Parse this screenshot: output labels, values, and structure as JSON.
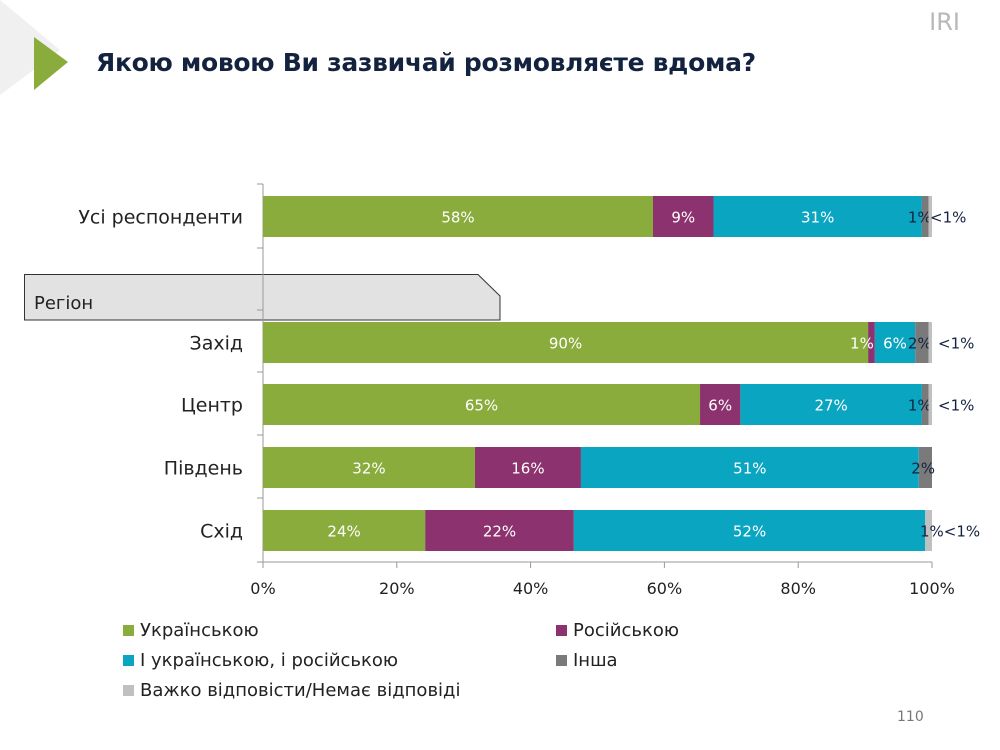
{
  "header": {
    "title": "Якою мовою Ви зазвичай розмовляєте вдома?",
    "logo": "IRI",
    "page_number": "110"
  },
  "colors": {
    "accent": "#8aac3c",
    "ukrainian": "#8aac3c",
    "russian": "#8c326e",
    "both": "#0aa5c0",
    "other": "#7a7a7a",
    "hard": "#c0c0c0",
    "text": "#13233f"
  },
  "chart_data": {
    "type": "bar",
    "orientation": "horizontal-stacked",
    "title": "",
    "categories": [
      "Усі респонденти",
      "Захід",
      "Центр",
      "Південь",
      "Схід"
    ],
    "group_label": "Регіон",
    "series": [
      {
        "name": "Українською",
        "color": "#8aac3c",
        "values": [
          58,
          90,
          65,
          32,
          24
        ],
        "labels": [
          "58%",
          "90%",
          "65%",
          "32%",
          "24%"
        ]
      },
      {
        "name": "Російською",
        "color": "#8c326e",
        "values": [
          9,
          1,
          6,
          16,
          22
        ],
        "labels": [
          "9%",
          "1%",
          "6%",
          "16%",
          "22%"
        ]
      },
      {
        "name": "І українською, і російською",
        "color": "#0aa5c0",
        "values": [
          31,
          6,
          27,
          51,
          52
        ],
        "labels": [
          "31%",
          "6%",
          "27%",
          "51%",
          "52%"
        ]
      },
      {
        "name": "Інша",
        "color": "#7a7a7a",
        "values": [
          1,
          2,
          1,
          2,
          0
        ],
        "labels": [
          "1%",
          "2%",
          "1%",
          "2%",
          ""
        ]
      },
      {
        "name": "Важко відповісти/Немає відповіді",
        "color": "#c0c0c0",
        "values": [
          0.5,
          0.5,
          0.5,
          0,
          1
        ],
        "labels": [
          "<1%",
          "<1%",
          "<1%",
          "",
          "1%<1%"
        ]
      }
    ],
    "xticks": [
      "0%",
      "20%",
      "40%",
      "60%",
      "80%",
      "100%"
    ],
    "xlim": [
      0,
      100
    ],
    "grid": false,
    "legend_position": "bottom"
  }
}
